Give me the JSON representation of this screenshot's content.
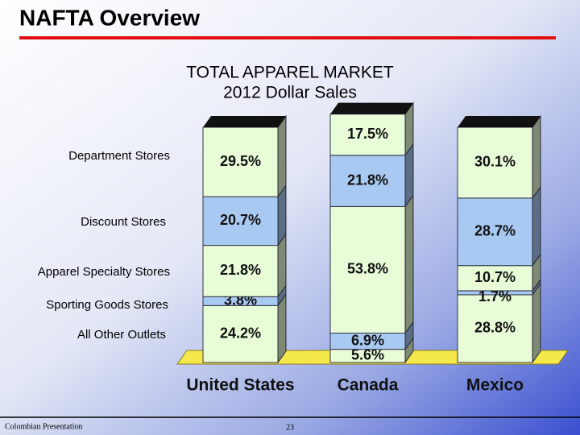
{
  "header": {
    "title": "NAFTA Overview"
  },
  "chart_data": {
    "type": "stacked-bar-3d",
    "title": [
      "TOTAL APPAREL MARKET",
      "2012 Dollar Sales"
    ],
    "categories": [
      "United States",
      "Canada",
      "Mexico"
    ],
    "series": [
      {
        "name": "All Other Outlets",
        "color": "#e8fcd8",
        "values": [
          24.2,
          5.6,
          28.8
        ],
        "value_labels": [
          "24.2%",
          "5.6%",
          "28.8%"
        ]
      },
      {
        "name": "Sporting Goods Stores",
        "color": "#a8c9f2",
        "values": [
          3.8,
          6.9,
          1.7
        ],
        "value_labels": [
          "3.8%",
          "6.9%",
          "1.7%"
        ]
      },
      {
        "name": "Apparel Specialty Stores",
        "color": "#e8fcd8",
        "values": [
          21.8,
          53.8,
          10.7
        ],
        "value_labels": [
          "21.8%",
          "53.8%",
          "10.7%"
        ]
      },
      {
        "name": "Discount Stores",
        "color": "#a8c9f2",
        "values": [
          20.7,
          21.8,
          28.7
        ],
        "value_labels": [
          "20.7%",
          "21.8%",
          "28.7%"
        ]
      },
      {
        "name": "Department Stores",
        "color": "#e8fcd8",
        "values": [
          29.5,
          17.5,
          30.1
        ],
        "value_labels": [
          "29.5%",
          "17.5%",
          "30.1%"
        ]
      }
    ],
    "ylim": [
      0,
      106
    ]
  },
  "footer": {
    "left": "Colombian Presentation",
    "page": "23"
  }
}
